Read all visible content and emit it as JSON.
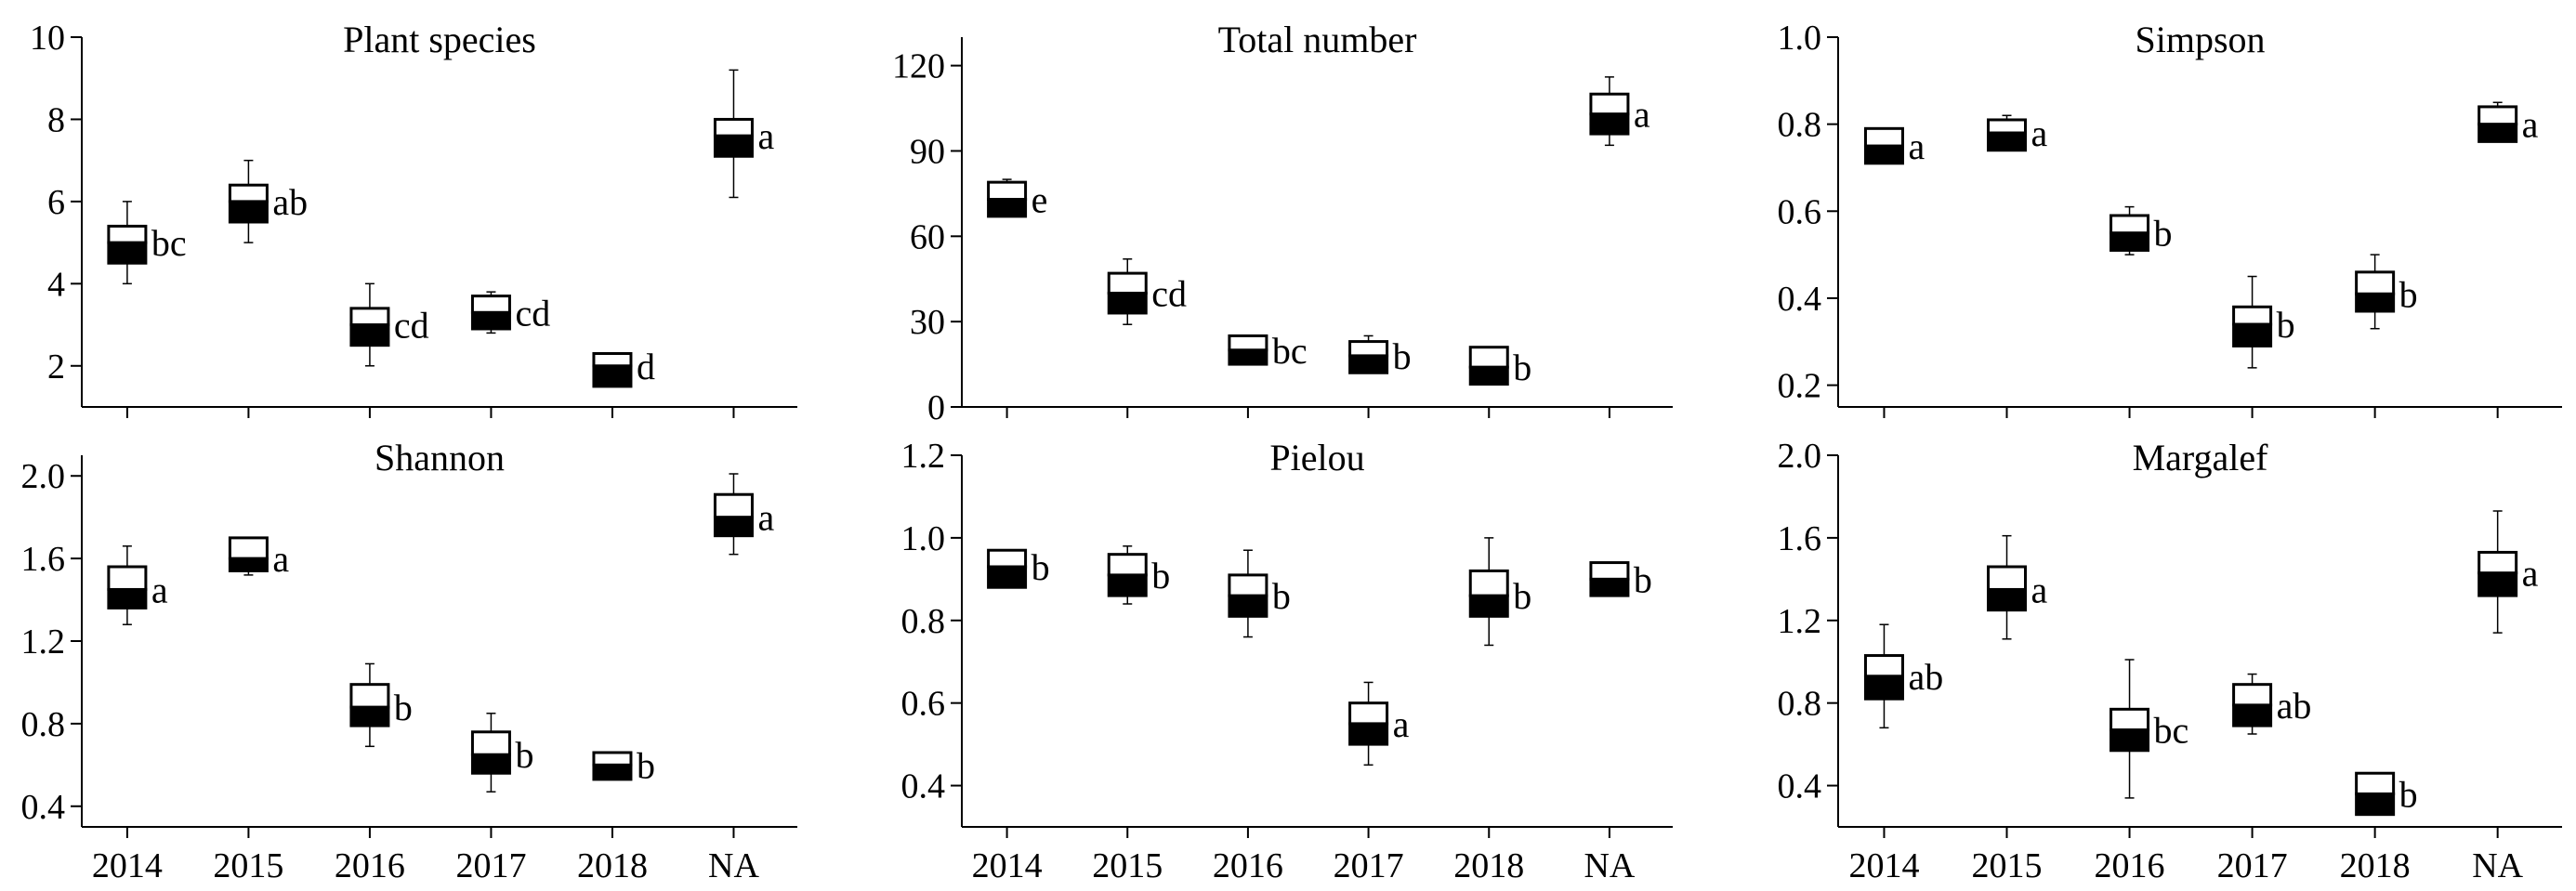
{
  "chart_data": [
    {
      "type": "box",
      "title": "Plant species",
      "categories": [
        "2014",
        "2015",
        "2016",
        "2017",
        "2018",
        "NA"
      ],
      "ylim": [
        1,
        10
      ],
      "yticks": [
        "2",
        "4",
        "6",
        "8",
        "10"
      ],
      "boxes": [
        {
          "category": "2014",
          "min": 4.0,
          "q1": 4.5,
          "median": 5.0,
          "q3": 5.4,
          "max": 6.0,
          "letter": "bc"
        },
        {
          "category": "2015",
          "min": 5.0,
          "q1": 5.5,
          "median": 6.0,
          "q3": 6.4,
          "max": 7.0,
          "letter": "ab"
        },
        {
          "category": "2016",
          "min": 2.0,
          "q1": 2.5,
          "median": 3.0,
          "q3": 3.4,
          "max": 4.0,
          "letter": "cd"
        },
        {
          "category": "2017",
          "min": 2.8,
          "q1": 2.9,
          "median": 3.3,
          "q3": 3.7,
          "max": 3.8,
          "letter": "cd"
        },
        {
          "category": "2018",
          "min": 1.5,
          "q1": 1.5,
          "median": 2.0,
          "q3": 2.3,
          "max": 2.3,
          "letter": "d"
        },
        {
          "category": "NA",
          "min": 6.1,
          "q1": 7.1,
          "median": 7.6,
          "q3": 8.0,
          "max": 9.2,
          "letter": "a"
        }
      ]
    },
    {
      "type": "box",
      "title": "Total number",
      "categories": [
        "2014",
        "2015",
        "2016",
        "2017",
        "2018",
        "NA"
      ],
      "ylim": [
        0,
        130
      ],
      "yticks": [
        "0",
        "30",
        "60",
        "90",
        "120"
      ],
      "boxes": [
        {
          "category": "2014",
          "min": 67,
          "q1": 67,
          "median": 73,
          "q3": 79,
          "max": 80,
          "letter": "e"
        },
        {
          "category": "2015",
          "min": 29,
          "q1": 33,
          "median": 40,
          "q3": 47,
          "max": 52,
          "letter": "cd"
        },
        {
          "category": "2016",
          "min": 15,
          "q1": 15,
          "median": 20,
          "q3": 25,
          "max": 25,
          "letter": "bc"
        },
        {
          "category": "2017",
          "min": 12,
          "q1": 12,
          "median": 18,
          "q3": 23,
          "max": 25,
          "letter": "b"
        },
        {
          "category": "2018",
          "min": 8,
          "q1": 8,
          "median": 14,
          "q3": 21,
          "max": 21,
          "letter": "b"
        },
        {
          "category": "NA",
          "min": 92,
          "q1": 96,
          "median": 103,
          "q3": 110,
          "max": 116,
          "letter": "a"
        }
      ]
    },
    {
      "type": "box",
      "title": "Simpson",
      "categories": [
        "2014",
        "2015",
        "2016",
        "2017",
        "2018",
        "NA"
      ],
      "ylim": [
        0.15,
        1.0
      ],
      "yticks": [
        "0.2",
        "0.4",
        "0.6",
        "0.8",
        "1.0"
      ],
      "boxes": [
        {
          "category": "2014",
          "min": 0.71,
          "q1": 0.71,
          "median": 0.75,
          "q3": 0.79,
          "max": 0.79,
          "letter": "a"
        },
        {
          "category": "2015",
          "min": 0.74,
          "q1": 0.74,
          "median": 0.78,
          "q3": 0.81,
          "max": 0.82,
          "letter": "a"
        },
        {
          "category": "2016",
          "min": 0.5,
          "q1": 0.51,
          "median": 0.55,
          "q3": 0.59,
          "max": 0.61,
          "letter": "b"
        },
        {
          "category": "2017",
          "min": 0.24,
          "q1": 0.29,
          "median": 0.34,
          "q3": 0.38,
          "max": 0.45,
          "letter": "b"
        },
        {
          "category": "2018",
          "min": 0.33,
          "q1": 0.37,
          "median": 0.41,
          "q3": 0.46,
          "max": 0.5,
          "letter": "b"
        },
        {
          "category": "NA",
          "min": 0.76,
          "q1": 0.76,
          "median": 0.8,
          "q3": 0.84,
          "max": 0.85,
          "letter": "a"
        }
      ]
    },
    {
      "type": "box",
      "title": "Shannon",
      "categories": [
        "2014",
        "2015",
        "2016",
        "2017",
        "2018",
        "NA"
      ],
      "ylim": [
        0.3,
        2.1
      ],
      "yticks": [
        "0.4",
        "0.8",
        "1.2",
        "1.6",
        "2.0"
      ],
      "boxes": [
        {
          "category": "2014",
          "min": 1.28,
          "q1": 1.36,
          "median": 1.45,
          "q3": 1.56,
          "max": 1.66,
          "letter": "a"
        },
        {
          "category": "2015",
          "min": 1.52,
          "q1": 1.54,
          "median": 1.6,
          "q3": 1.7,
          "max": 1.7,
          "letter": "a"
        },
        {
          "category": "2016",
          "min": 0.69,
          "q1": 0.79,
          "median": 0.88,
          "q3": 0.99,
          "max": 1.09,
          "letter": "b"
        },
        {
          "category": "2017",
          "min": 0.47,
          "q1": 0.56,
          "median": 0.65,
          "q3": 0.76,
          "max": 0.85,
          "letter": "b"
        },
        {
          "category": "2018",
          "min": 0.53,
          "q1": 0.53,
          "median": 0.6,
          "q3": 0.66,
          "max": 0.66,
          "letter": "b"
        },
        {
          "category": "NA",
          "min": 1.62,
          "q1": 1.71,
          "median": 1.8,
          "q3": 1.91,
          "max": 2.01,
          "letter": "a"
        }
      ]
    },
    {
      "type": "box",
      "title": "Pielou",
      "categories": [
        "2014",
        "2015",
        "2016",
        "2017",
        "2018",
        "NA"
      ],
      "ylim": [
        0.3,
        1.2
      ],
      "yticks": [
        "0.4",
        "0.6",
        "0.8",
        "1.0",
        "1.2"
      ],
      "boxes": [
        {
          "category": "2014",
          "min": 0.88,
          "q1": 0.88,
          "median": 0.93,
          "q3": 0.97,
          "max": 0.97,
          "letter": "b"
        },
        {
          "category": "2015",
          "min": 0.84,
          "q1": 0.86,
          "median": 0.91,
          "q3": 0.96,
          "max": 0.98,
          "letter": "b"
        },
        {
          "category": "2016",
          "min": 0.76,
          "q1": 0.81,
          "median": 0.86,
          "q3": 0.91,
          "max": 0.97,
          "letter": "b"
        },
        {
          "category": "2017",
          "min": 0.45,
          "q1": 0.5,
          "median": 0.55,
          "q3": 0.6,
          "max": 0.65,
          "letter": "a"
        },
        {
          "category": "2018",
          "min": 0.74,
          "q1": 0.81,
          "median": 0.86,
          "q3": 0.92,
          "max": 1.0,
          "letter": "b"
        },
        {
          "category": "NA",
          "min": 0.86,
          "q1": 0.86,
          "median": 0.9,
          "q3": 0.94,
          "max": 0.94,
          "letter": "b"
        }
      ]
    },
    {
      "type": "box",
      "title": "Margalef",
      "categories": [
        "2014",
        "2015",
        "2016",
        "2017",
        "2018",
        "NA"
      ],
      "ylim": [
        0.2,
        2.0
      ],
      "yticks": [
        "0.4",
        "0.8",
        "1.2",
        "1.6",
        "2.0"
      ],
      "boxes": [
        {
          "category": "2014",
          "min": 0.68,
          "q1": 0.82,
          "median": 0.93,
          "q3": 1.03,
          "max": 1.18,
          "letter": "ab"
        },
        {
          "category": "2015",
          "min": 1.11,
          "q1": 1.25,
          "median": 1.35,
          "q3": 1.46,
          "max": 1.61,
          "letter": "a"
        },
        {
          "category": "2016",
          "min": 0.34,
          "q1": 0.57,
          "median": 0.67,
          "q3": 0.77,
          "max": 1.01,
          "letter": "bc"
        },
        {
          "category": "2017",
          "min": 0.65,
          "q1": 0.69,
          "median": 0.79,
          "q3": 0.89,
          "max": 0.94,
          "letter": "ab"
        },
        {
          "category": "2018",
          "min": 0.26,
          "q1": 0.26,
          "median": 0.36,
          "q3": 0.46,
          "max": 0.46,
          "letter": "b"
        },
        {
          "category": "NA",
          "min": 1.14,
          "q1": 1.32,
          "median": 1.43,
          "q3": 1.53,
          "max": 1.73,
          "letter": "a"
        }
      ]
    }
  ]
}
